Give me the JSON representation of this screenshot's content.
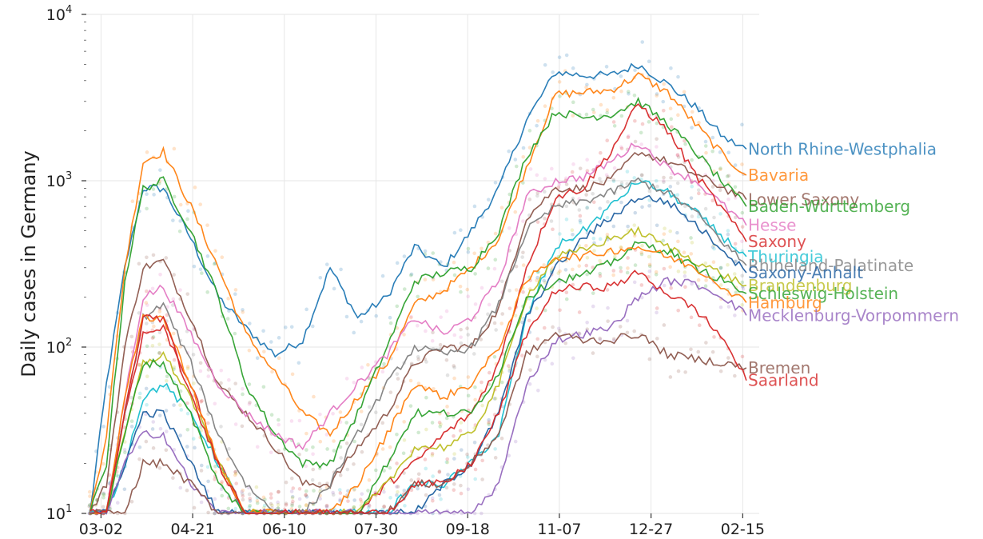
{
  "chart_data": {
    "type": "line",
    "title": "",
    "xlabel": "",
    "ylabel": "Daily cases in Germany",
    "yscale": "log",
    "ylim": [
      10,
      10000
    ],
    "xlim": [
      "02-23",
      "02-24"
    ],
    "x_ticks": [
      "03-02",
      "04-21",
      "06-10",
      "07-30",
      "09-18",
      "11-07",
      "12-27",
      "02-15"
    ],
    "y_ticks": [
      {
        "value": 10,
        "base": "10",
        "exp": "1"
      },
      {
        "value": 100,
        "base": "10",
        "exp": "2"
      },
      {
        "value": 1000,
        "base": "10",
        "exp": "3"
      },
      {
        "value": 10000,
        "base": "10",
        "exp": "4"
      }
    ],
    "grid": true,
    "legend": "direct labels at right end of each line",
    "markers": "faint scatter of raw daily values behind each smoothed line",
    "x": [
      "02-25",
      "03-05",
      "03-15",
      "03-25",
      "04-05",
      "04-20",
      "05-05",
      "05-20",
      "06-05",
      "06-20",
      "07-05",
      "07-20",
      "08-05",
      "08-20",
      "09-05",
      "09-20",
      "10-05",
      "10-20",
      "11-05",
      "11-20",
      "12-05",
      "12-20",
      "01-05",
      "01-20",
      "02-05",
      "02-17"
    ],
    "series": [
      {
        "name": "North Rhine-Westphalia",
        "color": "#1f77b4",
        "label_y": 1550,
        "values": [
          10,
          60,
          300,
          900,
          900,
          450,
          200,
          130,
          90,
          110,
          300,
          150,
          200,
          400,
          300,
          500,
          900,
          2300,
          4500,
          4300,
          4300,
          5000,
          3800,
          2800,
          1800,
          1550
        ]
      },
      {
        "name": "Bavaria",
        "color": "#ff7f0e",
        "label_y": 1080,
        "values": [
          10,
          30,
          300,
          1300,
          1500,
          700,
          300,
          120,
          70,
          40,
          30,
          50,
          80,
          180,
          220,
          300,
          450,
          1200,
          3300,
          3400,
          3500,
          4300,
          3400,
          2200,
          1400,
          1080
        ]
      },
      {
        "name": "Lower Saxony",
        "color": "#8c564b",
        "label_y": 770,
        "values": [
          10,
          15,
          100,
          300,
          330,
          150,
          60,
          40,
          25,
          15,
          15,
          25,
          40,
          80,
          100,
          100,
          170,
          600,
          900,
          900,
          1000,
          1500,
          1300,
          1100,
          900,
          770
        ]
      },
      {
        "name": "Baden-Württemberg",
        "color": "#2ca02c",
        "label_y": 700,
        "values": [
          10,
          20,
          250,
          900,
          1000,
          500,
          200,
          60,
          30,
          20,
          20,
          40,
          100,
          250,
          280,
          300,
          500,
          1400,
          2600,
          2400,
          2500,
          3000,
          2200,
          1500,
          950,
          700
        ]
      },
      {
        "name": "Hesse",
        "color": "#e377c2",
        "label_y": 540,
        "values": [
          10,
          10,
          50,
          200,
          230,
          120,
          60,
          40,
          30,
          25,
          40,
          60,
          90,
          150,
          120,
          150,
          250,
          800,
          1000,
          1050,
          1300,
          1700,
          1200,
          1000,
          700,
          540
        ]
      },
      {
        "name": "Saxony",
        "color": "#d62728",
        "label_y": 430,
        "values": [
          10,
          10,
          40,
          120,
          130,
          60,
          20,
          10,
          10,
          10,
          10,
          10,
          15,
          20,
          30,
          40,
          80,
          300,
          800,
          900,
          1500,
          2900,
          2000,
          1100,
          650,
          430
        ]
      },
      {
        "name": "Thuringia",
        "color": "#17becf",
        "label_y": 350,
        "values": [
          10,
          10,
          20,
          50,
          60,
          40,
          20,
          10,
          10,
          10,
          10,
          10,
          10,
          15,
          15,
          20,
          30,
          150,
          400,
          500,
          700,
          1000,
          850,
          650,
          450,
          350
        ]
      },
      {
        "name": "Rhineland-Palatinate",
        "color": "#7f7f7f",
        "label_y": 310,
        "values": [
          10,
          10,
          40,
          150,
          180,
          80,
          30,
          15,
          10,
          10,
          15,
          30,
          60,
          100,
          90,
          100,
          180,
          500,
          700,
          750,
          850,
          1000,
          850,
          650,
          420,
          310
        ]
      },
      {
        "name": "Saxony-Anhalt",
        "color": "#1f5fa0",
        "label_y": 280,
        "values": [
          10,
          10,
          20,
          40,
          40,
          20,
          10,
          10,
          10,
          10,
          10,
          10,
          10,
          10,
          15,
          20,
          40,
          150,
          300,
          450,
          600,
          800,
          750,
          550,
          380,
          280
        ]
      },
      {
        "name": "Brandenburg",
        "color": "#bcbd22",
        "label_y": 235,
        "values": [
          10,
          10,
          30,
          80,
          90,
          50,
          20,
          10,
          10,
          10,
          10,
          10,
          15,
          25,
          25,
          30,
          60,
          200,
          350,
          380,
          450,
          500,
          400,
          330,
          270,
          235
        ]
      },
      {
        "name": "Schleswig-Holstein",
        "color": "#2ca02c",
        "label_y": 210,
        "values": [
          10,
          10,
          30,
          80,
          80,
          40,
          15,
          10,
          10,
          10,
          10,
          10,
          20,
          40,
          40,
          40,
          70,
          200,
          250,
          270,
          320,
          420,
          380,
          300,
          250,
          210
        ]
      },
      {
        "name": "Hamburg",
        "color": "#ff7f0e",
        "label_y": 185,
        "values": [
          10,
          10,
          50,
          150,
          150,
          60,
          20,
          10,
          10,
          10,
          10,
          15,
          30,
          60,
          50,
          60,
          100,
          250,
          350,
          350,
          380,
          400,
          350,
          300,
          230,
          185
        ]
      },
      {
        "name": "Mecklenburg-Vorpommern",
        "color": "#9467bd",
        "label_y": 155,
        "values": [
          10,
          10,
          20,
          30,
          30,
          15,
          10,
          10,
          10,
          10,
          10,
          10,
          10,
          10,
          10,
          10,
          15,
          60,
          110,
          120,
          130,
          200,
          250,
          240,
          200,
          155
        ]
      },
      {
        "name": "Bremen",
        "color": "#8c564b",
        "label_y": 75,
        "values": [
          10,
          10,
          10,
          20,
          20,
          15,
          10,
          10,
          10,
          10,
          10,
          10,
          10,
          15,
          15,
          20,
          30,
          90,
          120,
          110,
          110,
          120,
          90,
          85,
          80,
          75
        ]
      },
      {
        "name": "Saarland",
        "color": "#d62728",
        "label_y": 63,
        "values": [
          10,
          10,
          40,
          150,
          150,
          50,
          20,
          10,
          10,
          10,
          10,
          10,
          10,
          15,
          15,
          20,
          40,
          120,
          220,
          230,
          230,
          280,
          210,
          170,
          110,
          63
        ]
      }
    ]
  }
}
